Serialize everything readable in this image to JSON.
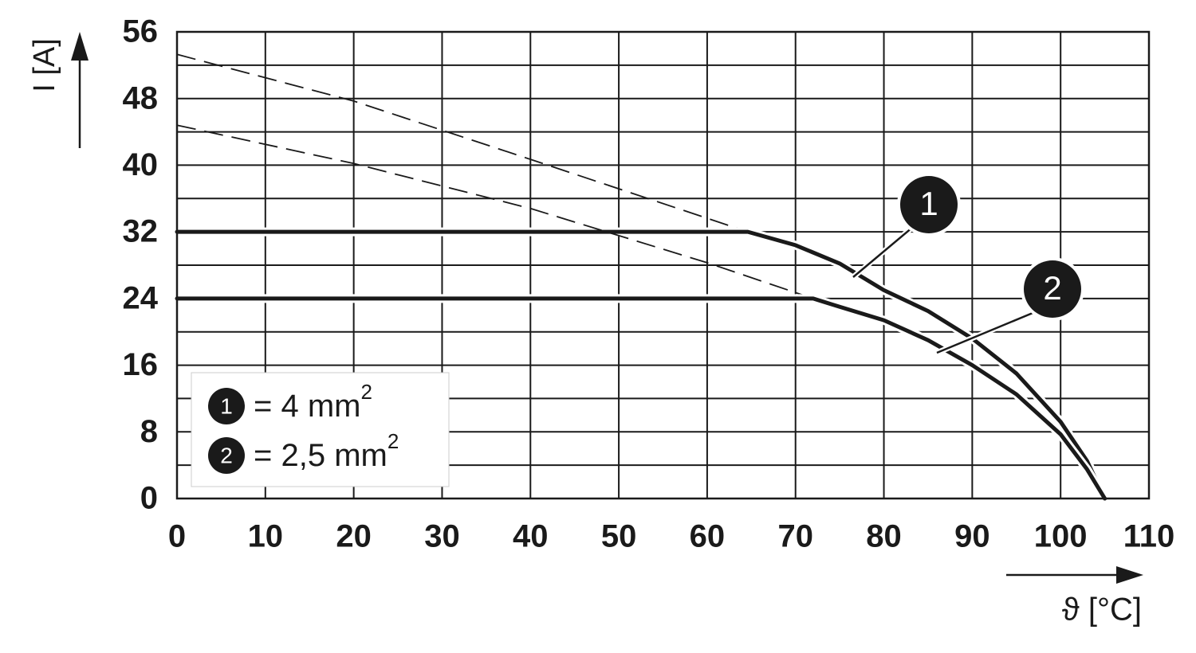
{
  "chart_data": {
    "type": "line",
    "x_label": "ϑ [°C]",
    "y_label": "I [A]",
    "xlim": [
      0,
      110
    ],
    "ylim": [
      0,
      56
    ],
    "xticks": [
      0,
      10,
      20,
      30,
      40,
      50,
      60,
      70,
      80,
      90,
      100,
      110
    ],
    "yticks": [
      0,
      8,
      16,
      24,
      32,
      40,
      48,
      56
    ],
    "y_minor_grid": [
      4,
      12,
      20,
      28,
      36,
      44,
      52
    ],
    "grid": true,
    "series": [
      {
        "marker": "1",
        "name": "= 4 mm",
        "name_sup": "2",
        "color": "#1a1a1a",
        "x": [
          0,
          64.6,
          70,
          75,
          80,
          85,
          90,
          95,
          100,
          103,
          105
        ],
        "values": [
          32,
          32,
          30.4,
          28.2,
          25,
          22.5,
          19.2,
          15,
          9.2,
          4.5,
          0
        ],
        "extrapolation": {
          "x": [
            0,
            20,
            40,
            64.6
          ],
          "values": [
            53.3,
            47.7,
            40.7,
            32
          ]
        }
      },
      {
        "marker": "2",
        "name": "= 2,5 mm",
        "name_sup": "2",
        "color": "#1a1a1a",
        "x": [
          0,
          72,
          75,
          80,
          85,
          90,
          95,
          100,
          103,
          105
        ],
        "values": [
          24,
          24,
          23,
          21.4,
          19,
          16,
          12.5,
          7.7,
          3.5,
          0
        ],
        "extrapolation": {
          "x": [
            0,
            20,
            40,
            60,
            72
          ],
          "values": [
            44.8,
            40.2,
            34.8,
            28.3,
            24
          ]
        }
      }
    ]
  }
}
